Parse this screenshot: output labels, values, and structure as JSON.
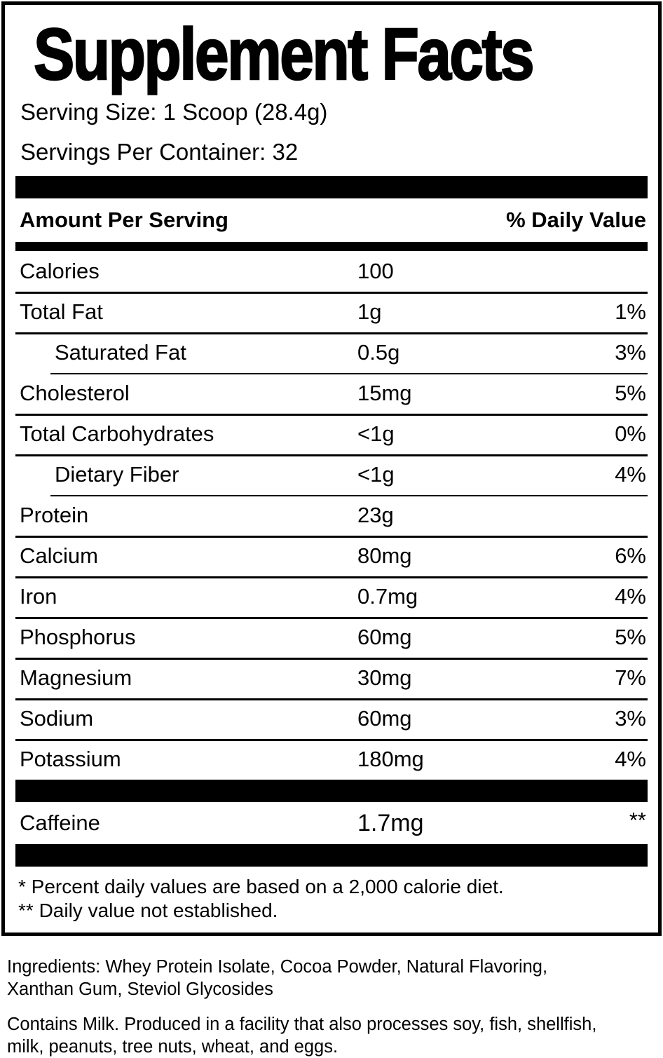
{
  "label": {
    "title": "Supplement Facts",
    "serving_size": "Serving Size: 1 Scoop (28.4g)",
    "servings_per_container": "Servings Per Container: 32",
    "header": {
      "amount": "Amount Per Serving",
      "daily_value": "% Daily Value"
    },
    "rows": [
      {
        "name": "Calories",
        "amount": "100",
        "dv": ""
      },
      {
        "name": "Total Fat",
        "amount": "1g",
        "dv": "1%"
      },
      {
        "name": "Saturated Fat",
        "amount": "0.5g",
        "dv": "3%"
      },
      {
        "name": "Cholesterol",
        "amount": "15mg",
        "dv": "5%"
      },
      {
        "name": "Total Carbohydrates",
        "amount": "<1g",
        "dv": "0%"
      },
      {
        "name": "Dietary Fiber",
        "amount": "<1g",
        "dv": "4%"
      },
      {
        "name": "Protein",
        "amount": "23g",
        "dv": ""
      },
      {
        "name": "Calcium",
        "amount": "80mg",
        "dv": "6%"
      },
      {
        "name": "Iron",
        "amount": "0.7mg",
        "dv": "4%"
      },
      {
        "name": "Phosphorus",
        "amount": "60mg",
        "dv": "5%"
      },
      {
        "name": "Magnesium",
        "amount": "30mg",
        "dv": "7%"
      },
      {
        "name": "Sodium",
        "amount": "60mg",
        "dv": "3%"
      },
      {
        "name": "Potassium",
        "amount": "180mg",
        "dv": "4%"
      }
    ],
    "caffeine_row": {
      "name": "Caffeine",
      "amount": "1.7mg",
      "dv": "**"
    },
    "footnotes": {
      "daily_values": "* Percent daily values are based on a 2,000 calorie diet.",
      "not_established": "** Daily value not established."
    },
    "colors": {
      "ink": "#000000",
      "paper": "#ffffff"
    }
  },
  "ingredients": {
    "lines": [
      "Ingredients: Whey Protein Isolate, Cocoa Powder, Natural Flavoring,",
      "Xanthan Gum, Steviol Glycosides"
    ]
  },
  "allergens": {
    "lines": [
      "Contains Milk. Produced in a facility that also processes soy, fish, shellfish,",
      "milk, peanuts, tree nuts, wheat, and eggs."
    ]
  }
}
